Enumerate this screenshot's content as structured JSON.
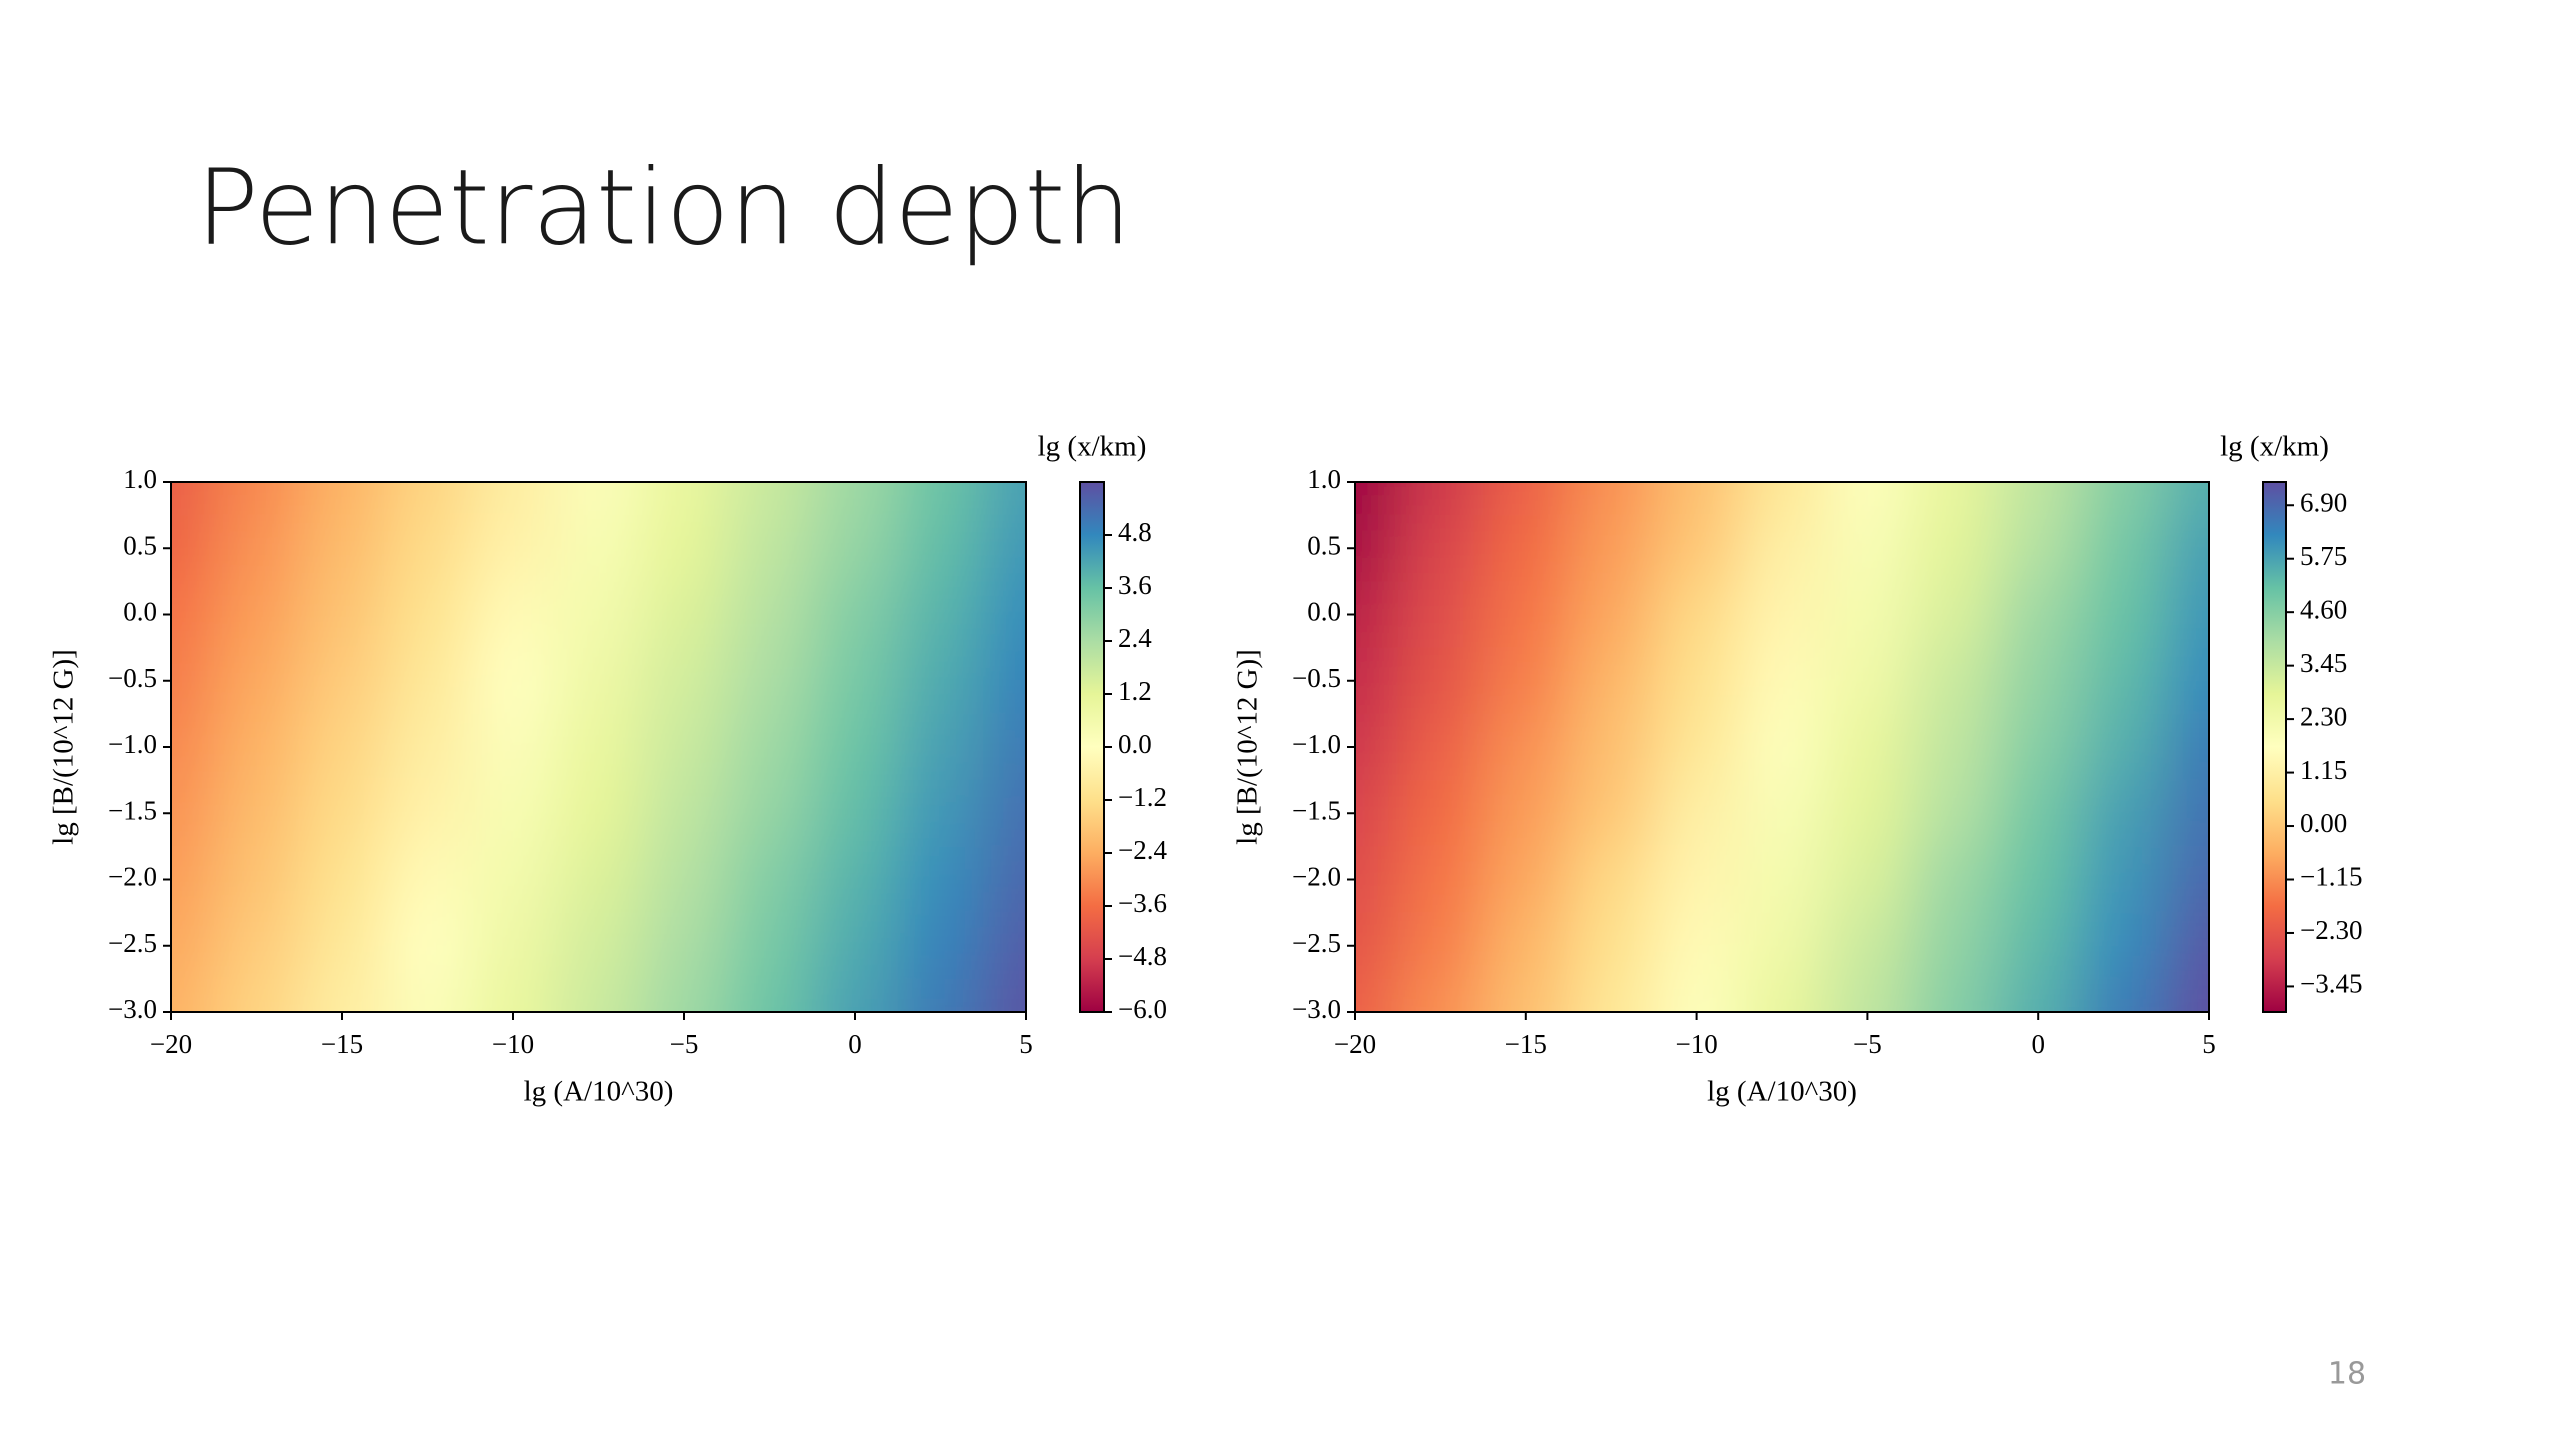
{
  "title": "Penetration depth",
  "page_number": "18",
  "chart_data": [
    {
      "type": "heatmap",
      "colormap": "Spectral",
      "xlabel": "lg (A/10^30)",
      "ylabel": "lg [B/(10^12 G)]",
      "colorbar_label": "lg (x/km)",
      "x": [
        -20,
        -17.5,
        -15,
        -12.5,
        -10,
        -7.5,
        -5,
        -2.5,
        0,
        2.5,
        5
      ],
      "y": [
        1.0,
        0.5,
        0.0,
        -0.5,
        -1.0,
        -1.5,
        -2.0,
        -2.5,
        -3.0
      ],
      "z": [
        [
          -4.0,
          -3.1,
          -2.3,
          -1.5,
          -0.7,
          0.2,
          1.0,
          1.8,
          2.6,
          3.5,
          4.3
        ],
        [
          -3.8,
          -2.9,
          -2.1,
          -1.3,
          -0.5,
          0.4,
          1.2,
          2.0,
          2.8,
          3.7,
          4.5
        ],
        [
          -3.5,
          -2.7,
          -1.9,
          -1.1,
          -0.2,
          0.6,
          1.4,
          2.2,
          3.1,
          3.9,
          4.7
        ],
        [
          -3.3,
          -2.5,
          -1.7,
          -0.9,
          0.0,
          0.8,
          1.6,
          2.4,
          3.3,
          4.1,
          4.9
        ],
        [
          -3.1,
          -2.3,
          -1.5,
          -0.7,
          0.2,
          1.0,
          1.8,
          2.6,
          3.5,
          4.3,
          5.1
        ],
        [
          -2.9,
          -2.1,
          -1.3,
          -0.5,
          0.4,
          1.2,
          2.0,
          2.8,
          3.7,
          4.5,
          5.3
        ],
        [
          -2.7,
          -1.9,
          -1.1,
          -0.2,
          0.6,
          1.4,
          2.2,
          3.1,
          3.9,
          4.7,
          5.5
        ],
        [
          -2.5,
          -1.7,
          -0.9,
          0.0,
          0.8,
          1.6,
          2.4,
          3.3,
          4.1,
          4.9,
          5.7
        ],
        [
          -2.3,
          -1.5,
          -0.7,
          0.2,
          1.0,
          1.8,
          2.6,
          3.5,
          4.3,
          5.1,
          5.9
        ]
      ],
      "xlim": [
        -20,
        5
      ],
      "xticks": [
        {
          "value": -20,
          "label": "−20"
        },
        {
          "value": -15,
          "label": "−15"
        },
        {
          "value": -10,
          "label": "−10"
        },
        {
          "value": -5,
          "label": "−5"
        },
        0,
        5
      ],
      "ylim": [
        -3,
        1
      ],
      "yticks": [
        {
          "value": 1,
          "label": "1.0"
        },
        {
          "value": 0.5,
          "label": "0.5"
        },
        {
          "value": 0,
          "label": "0.0"
        },
        {
          "value": -0.5,
          "label": "−0.5"
        },
        {
          "value": -1,
          "label": "−1.0"
        },
        {
          "value": -1.5,
          "label": "−1.5"
        },
        {
          "value": -2,
          "label": "−2.0"
        },
        {
          "value": -2.5,
          "label": "−2.5"
        },
        {
          "value": -3,
          "label": "−3.0"
        }
      ],
      "zlim": [
        -6,
        6
      ],
      "zticks": [
        {
          "value": -6,
          "label": "−6.0"
        },
        {
          "value": -4.8,
          "label": "−4.8"
        },
        {
          "value": -3.6,
          "label": "−3.6"
        },
        {
          "value": -2.4,
          "label": "−2.4"
        },
        {
          "value": -1.2,
          "label": "−1.2"
        },
        {
          "value": 0,
          "label": "0.0"
        },
        {
          "value": 1.2,
          "label": "1.2"
        },
        {
          "value": 2.4,
          "label": "2.4"
        },
        {
          "value": 3.6,
          "label": "3.6"
        },
        {
          "value": 4.8,
          "label": "4.8"
        }
      ]
    },
    {
      "type": "heatmap",
      "colormap": "Spectral",
      "xlabel": "lg (A/10^30)",
      "ylabel": "lg [B/(10^12 G)]",
      "colorbar_label": "lg (x/km)",
      "x": [
        -20,
        -17.5,
        -15,
        -12.5,
        -10,
        -7.5,
        -5,
        -2.5,
        0,
        2.5,
        5
      ],
      "y": [
        1.0,
        0.5,
        0.0,
        -0.5,
        -1.0,
        -1.5,
        -2.0,
        -2.5,
        -3.0
      ],
      "z": [
        [
          -4.0,
          -3.0,
          -2.0,
          -1.1,
          -0.2,
          0.8,
          1.8,
          2.7,
          3.6,
          4.6,
          5.5
        ],
        [
          -3.8,
          -2.7,
          -1.8,
          -0.9,
          0.0,
          1.1,
          2.0,
          2.9,
          3.8,
          4.9,
          5.8
        ],
        [
          -3.4,
          -2.5,
          -1.6,
          -0.7,
          0.4,
          1.3,
          2.2,
          3.1,
          4.2,
          5.1,
          6.0
        ],
        [
          -3.2,
          -2.3,
          -1.4,
          -0.4,
          0.6,
          1.5,
          2.4,
          3.4,
          4.4,
          5.3,
          6.2
        ],
        [
          -3.0,
          -2.0,
          -1.1,
          -0.2,
          0.8,
          1.8,
          2.7,
          3.6,
          4.6,
          5.5,
          6.5
        ],
        [
          -2.7,
          -1.8,
          -0.9,
          0.0,
          1.1,
          2.0,
          2.9,
          3.8,
          4.9,
          5.8,
          6.7
        ],
        [
          -2.5,
          -1.6,
          -0.7,
          0.4,
          1.3,
          2.2,
          3.1,
          4.2,
          5.1,
          6.0,
          6.9
        ],
        [
          -2.3,
          -1.4,
          -0.4,
          0.6,
          1.5,
          2.4,
          3.4,
          4.4,
          5.3,
          6.2,
          7.2
        ],
        [
          -2.0,
          -1.1,
          -0.2,
          0.8,
          1.8,
          2.7,
          3.6,
          4.6,
          5.5,
          6.5,
          7.4
        ]
      ],
      "xlim": [
        -20,
        5
      ],
      "xticks": [
        {
          "value": -20,
          "label": "−20"
        },
        {
          "value": -15,
          "label": "−15"
        },
        {
          "value": -10,
          "label": "−10"
        },
        {
          "value": -5,
          "label": "−5"
        },
        0,
        5
      ],
      "ylim": [
        -3,
        1
      ],
      "yticks": [
        {
          "value": 1,
          "label": "1.0"
        },
        {
          "value": 0.5,
          "label": "0.5"
        },
        {
          "value": 0,
          "label": "0.0"
        },
        {
          "value": -0.5,
          "label": "−0.5"
        },
        {
          "value": -1,
          "label": "−1.0"
        },
        {
          "value": -1.5,
          "label": "−1.5"
        },
        {
          "value": -2,
          "label": "−2.0"
        },
        {
          "value": -2.5,
          "label": "−2.5"
        },
        {
          "value": -3,
          "label": "−3.0"
        }
      ],
      "zlim": [
        -4.0,
        7.4
      ],
      "zticks": [
        {
          "value": -3.45,
          "label": "−3.45"
        },
        {
          "value": -2.3,
          "label": "−2.30"
        },
        {
          "value": -1.15,
          "label": "−1.15"
        },
        {
          "value": 0,
          "label": "0.00"
        },
        {
          "value": 1.15,
          "label": "1.15"
        },
        {
          "value": 2.3,
          "label": "2.30"
        },
        {
          "value": 3.45,
          "label": "3.45"
        },
        {
          "value": 4.6,
          "label": "4.60"
        },
        {
          "value": 5.75,
          "label": "5.75"
        },
        {
          "value": 6.9,
          "label": "6.90"
        }
      ]
    }
  ]
}
